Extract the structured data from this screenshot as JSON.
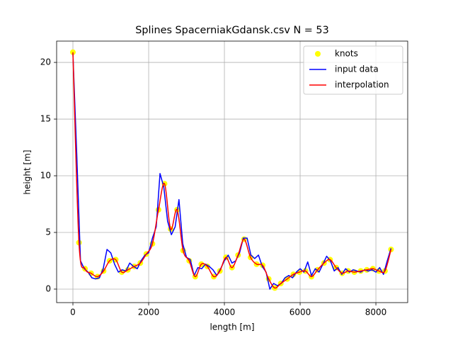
{
  "chart_data": {
    "type": "line",
    "title": "Splines SpacerniakGdansk.csv N = 53",
    "x_label": "length [m]",
    "y_label": "height [m]",
    "xlim": [
      -430,
      8840
    ],
    "ylim": [
      -1.19,
      21.88
    ],
    "xticks": [
      0,
      2000,
      4000,
      6000,
      8000
    ],
    "yticks": [
      0,
      5,
      10,
      15,
      20
    ],
    "grid": true,
    "legend": "upper right",
    "series": [
      {
        "name": "knots",
        "color": "#ffff00",
        "marker": "circle",
        "x": [
          0,
          160,
          320,
          480,
          650,
          810,
          970,
          1130,
          1290,
          1450,
          1620,
          1780,
          1940,
          2100,
          2260,
          2420,
          2580,
          2750,
          2910,
          3070,
          3230,
          3390,
          3550,
          3720,
          3880,
          4040,
          4200,
          4360,
          4520,
          4690,
          4850,
          5010,
          5170,
          5330,
          5490,
          5660,
          5820,
          5980,
          6140,
          6300,
          6460,
          6630,
          6790,
          6950,
          7110,
          7270,
          7430,
          7600,
          7760,
          7920,
          8080,
          8240,
          8400
        ],
        "values": [
          20.9,
          4.1,
          1.8,
          1.4,
          1.1,
          1.6,
          2.5,
          2.6,
          1.5,
          1.7,
          2.0,
          2.3,
          3.1,
          4.0,
          7.0,
          9.3,
          5.3,
          7.0,
          3.4,
          2.5,
          1.1,
          2.2,
          2.0,
          1.1,
          1.6,
          2.8,
          1.9,
          3.0,
          4.4,
          2.8,
          2.2,
          2.1,
          0.9,
          0.1,
          0.5,
          0.9,
          1.3,
          1.5,
          1.6,
          1.1,
          1.7,
          2.3,
          2.6,
          1.9,
          1.4,
          1.6,
          1.5,
          1.6,
          1.7,
          1.8,
          1.6,
          1.6,
          3.5
        ]
      },
      {
        "name": "input data",
        "color": "#0000ff",
        "marker": "none",
        "x": [
          0,
          100,
          200,
          300,
          400,
          500,
          600,
          700,
          800,
          900,
          1000,
          1100,
          1200,
          1300,
          1400,
          1500,
          1600,
          1700,
          1800,
          1900,
          2000,
          2100,
          2200,
          2300,
          2400,
          2500,
          2600,
          2700,
          2800,
          2900,
          3000,
          3100,
          3200,
          3300,
          3400,
          3500,
          3600,
          3700,
          3800,
          3900,
          4000,
          4100,
          4200,
          4300,
          4400,
          4500,
          4600,
          4700,
          4800,
          4900,
          5000,
          5100,
          5200,
          5300,
          5400,
          5500,
          5600,
          5700,
          5800,
          5900,
          6000,
          6100,
          6200,
          6300,
          6400,
          6500,
          6600,
          6700,
          6800,
          6900,
          7000,
          7100,
          7200,
          7300,
          7400,
          7500,
          7600,
          7700,
          7800,
          7900,
          8000,
          8100,
          8200,
          8300,
          8400
        ],
        "values": [
          20.8,
          12,
          2.5,
          1.8,
          1.5,
          1.0,
          0.9,
          1.0,
          1.8,
          3.5,
          3.2,
          2.2,
          1.5,
          1.7,
          1.6,
          2.3,
          2.0,
          1.8,
          2.5,
          3.0,
          3.2,
          4.5,
          5.5,
          10.2,
          9.0,
          6.0,
          4.8,
          5.5,
          7.9,
          4.0,
          2.8,
          2.6,
          1.2,
          1.9,
          1.8,
          2.2,
          2.0,
          1.7,
          1.2,
          1.8,
          2.5,
          3.0,
          2.3,
          2.5,
          3.2,
          4.5,
          4.5,
          3.0,
          2.7,
          3.0,
          2.0,
          1.5,
          0.0,
          0.5,
          0.3,
          0.5,
          1.0,
          1.2,
          1.0,
          1.5,
          1.8,
          1.5,
          2.4,
          1.2,
          1.8,
          1.5,
          2.2,
          2.9,
          2.5,
          1.6,
          1.9,
          1.3,
          1.8,
          1.5,
          1.7,
          1.6,
          1.5,
          1.7,
          1.6,
          1.7,
          1.5,
          1.9,
          1.3,
          2.5,
          3.6
        ]
      },
      {
        "name": "interpolation",
        "color": "#ff0000",
        "marker": "smooth",
        "x": [
          0,
          160,
          320,
          480,
          650,
          810,
          970,
          1130,
          1290,
          1450,
          1620,
          1780,
          1940,
          2100,
          2260,
          2420,
          2580,
          2750,
          2910,
          3070,
          3230,
          3390,
          3550,
          3720,
          3880,
          4040,
          4200,
          4360,
          4520,
          4690,
          4850,
          5010,
          5170,
          5330,
          5490,
          5660,
          5820,
          5980,
          6140,
          6300,
          6460,
          6630,
          6790,
          6950,
          7110,
          7270,
          7430,
          7600,
          7760,
          7920,
          8080,
          8240,
          8400
        ],
        "values": [
          20.9,
          4.1,
          1.8,
          1.4,
          1.1,
          1.6,
          2.5,
          2.6,
          1.5,
          1.7,
          2.0,
          2.3,
          3.1,
          4.0,
          7.0,
          9.3,
          5.3,
          7.0,
          3.4,
          2.5,
          1.1,
          2.2,
          2.0,
          1.1,
          1.6,
          2.8,
          1.9,
          3.0,
          4.4,
          2.8,
          2.2,
          2.1,
          0.9,
          0.1,
          0.5,
          0.9,
          1.3,
          1.5,
          1.6,
          1.1,
          1.7,
          2.3,
          2.6,
          1.9,
          1.4,
          1.6,
          1.5,
          1.6,
          1.7,
          1.8,
          1.6,
          1.6,
          3.5
        ]
      }
    ]
  }
}
